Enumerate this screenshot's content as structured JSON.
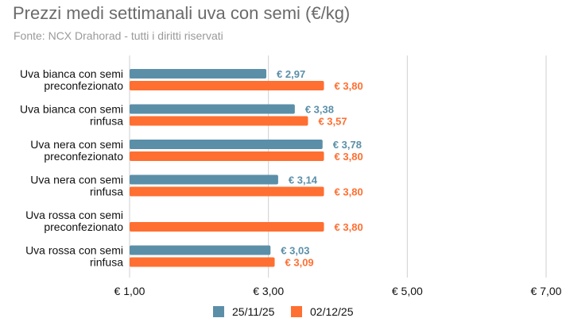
{
  "chart_data": {
    "type": "bar",
    "orientation": "horizontal",
    "title": "Prezzi medi settimanali uva con semi (€/kg)",
    "subtitle": "Fonte: NCX Drahorad - tutti i diritti riservati",
    "categories": [
      [
        "Uva bianca con semi",
        "preconfezionato"
      ],
      [
        "Uva bianca con semi",
        "rinfusa"
      ],
      [
        "Uva nera con semi",
        "preconfezionato"
      ],
      [
        "Uva nera con semi",
        "rinfusa"
      ],
      [
        "Uva rossa con semi",
        "preconfezionato"
      ],
      [
        "Uva rossa con semi",
        "rinfusa"
      ]
    ],
    "series": [
      {
        "name": "25/11/25",
        "color": "#5b8fa8",
        "values": [
          2.97,
          3.38,
          3.78,
          3.14,
          null,
          3.03
        ],
        "labels": [
          "€ 2,97",
          "€ 3,38",
          "€ 3,78",
          "€ 3,14",
          "",
          "€ 3,03"
        ]
      },
      {
        "name": "02/12/25",
        "color": "#ff6f31",
        "values": [
          3.8,
          3.57,
          3.8,
          3.8,
          3.8,
          3.09
        ],
        "labels": [
          "€ 3,80",
          "€ 3,57",
          "€ 3,80",
          "€ 3,80",
          "€ 3,80",
          "€ 3,09"
        ]
      }
    ],
    "xlim": [
      1,
      7
    ],
    "xticks": [
      1,
      3,
      5,
      7
    ],
    "xtick_labels": [
      "€ 1,00",
      "€ 3,00",
      "€ 5,00",
      "€ 7,00"
    ],
    "grid": "vertical",
    "legend_position": "bottom"
  }
}
